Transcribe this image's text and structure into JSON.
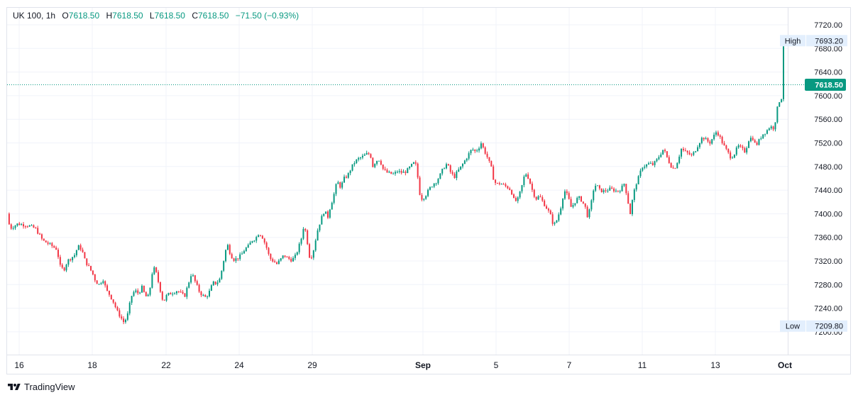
{
  "legend": {
    "symbol": "UK 100",
    "interval": "1h",
    "o_label": "O",
    "o_value": "7618.50",
    "h_label": "H",
    "h_value": "7618.50",
    "l_label": "L",
    "l_value": "7618.50",
    "c_label": "C",
    "c_value": "7618.50",
    "change": "−71.50 (−0.93%)"
  },
  "footer": {
    "brand": "TradingView"
  },
  "colors": {
    "up": "#089981",
    "down": "#f23645",
    "grid": "#f0f3fa",
    "text": "#131722",
    "last_price_bg": "#089981",
    "marker_bg": "#e3effd"
  },
  "chart_data": {
    "type": "candlestick",
    "title": "UK 100, 1h",
    "ylim": [
      7190,
      7730
    ],
    "y_ticks": [
      "7720.00",
      "7680.00",
      "7640.00",
      "7600.00",
      "7560.00",
      "7520.00",
      "7480.00",
      "7440.00",
      "7400.00",
      "7360.00",
      "7320.00",
      "7280.00",
      "7240.00",
      "7200.00"
    ],
    "x_ticks": [
      "16",
      "18",
      "22",
      "24",
      "29",
      "Sep",
      "5",
      "7",
      "11",
      "13",
      "Oct"
    ],
    "high_marker": {
      "label": "High",
      "value": "7693.20"
    },
    "low_marker": {
      "label": "Low",
      "value": "7209.80"
    },
    "last_price": "7618.50",
    "grid": true,
    "close_path": [
      [
        0,
        7400
      ],
      [
        4,
        7375
      ],
      [
        15,
        7383
      ],
      [
        30,
        7380
      ],
      [
        40,
        7375
      ],
      [
        50,
        7355
      ],
      [
        60,
        7348
      ],
      [
        70,
        7340
      ],
      [
        75,
        7310
      ],
      [
        80,
        7305
      ],
      [
        85,
        7320
      ],
      [
        95,
        7330
      ],
      [
        100,
        7345
      ],
      [
        105,
        7340
      ],
      [
        110,
        7320
      ],
      [
        115,
        7310
      ],
      [
        120,
        7300
      ],
      [
        125,
        7285
      ],
      [
        130,
        7280
      ],
      [
        135,
        7290
      ],
      [
        140,
        7270
      ],
      [
        145,
        7262
      ],
      [
        150,
        7250
      ],
      [
        155,
        7235
      ],
      [
        160,
        7225
      ],
      [
        165,
        7215
      ],
      [
        170,
        7230
      ],
      [
        175,
        7260
      ],
      [
        180,
        7270
      ],
      [
        185,
        7265
      ],
      [
        190,
        7275
      ],
      [
        195,
        7260
      ],
      [
        200,
        7260
      ],
      [
        203,
        7290
      ],
      [
        206,
        7310
      ],
      [
        210,
        7300
      ],
      [
        215,
        7275
      ],
      [
        220,
        7250
      ],
      [
        225,
        7262
      ],
      [
        230,
        7265
      ],
      [
        240,
        7270
      ],
      [
        250,
        7260
      ],
      [
        255,
        7280
      ],
      [
        260,
        7300
      ],
      [
        265,
        7285
      ],
      [
        270,
        7270
      ],
      [
        275,
        7262
      ],
      [
        280,
        7258
      ],
      [
        285,
        7268
      ],
      [
        290,
        7283
      ],
      [
        295,
        7282
      ],
      [
        300,
        7290
      ],
      [
        305,
        7320
      ],
      [
        310,
        7350
      ],
      [
        315,
        7330
      ],
      [
        320,
        7322
      ],
      [
        325,
        7325
      ],
      [
        330,
        7330
      ],
      [
        335,
        7340
      ],
      [
        340,
        7345
      ],
      [
        345,
        7355
      ],
      [
        350,
        7358
      ],
      [
        355,
        7368
      ],
      [
        360,
        7360
      ],
      [
        365,
        7345
      ],
      [
        370,
        7325
      ],
      [
        375,
        7320
      ],
      [
        380,
        7315
      ],
      [
        385,
        7322
      ],
      [
        390,
        7330
      ],
      [
        395,
        7325
      ],
      [
        400,
        7322
      ],
      [
        405,
        7325
      ],
      [
        410,
        7340
      ],
      [
        415,
        7360
      ],
      [
        418,
        7380
      ],
      [
        422,
        7365
      ],
      [
        425,
        7330
      ],
      [
        428,
        7325
      ],
      [
        432,
        7340
      ],
      [
        437,
        7370
      ],
      [
        442,
        7390
      ],
      [
        447,
        7405
      ],
      [
        452,
        7395
      ],
      [
        455,
        7410
      ],
      [
        460,
        7430
      ],
      [
        465,
        7455
      ],
      [
        470,
        7445
      ],
      [
        475,
        7460
      ],
      [
        480,
        7465
      ],
      [
        485,
        7478
      ],
      [
        490,
        7488
      ],
      [
        495,
        7493
      ],
      [
        500,
        7496
      ],
      [
        505,
        7500
      ],
      [
        508,
        7502
      ],
      [
        512,
        7500
      ],
      [
        515,
        7480
      ],
      [
        520,
        7490
      ],
      [
        525,
        7492
      ],
      [
        530,
        7475
      ],
      [
        535,
        7470
      ],
      [
        540,
        7468
      ],
      [
        545,
        7467
      ],
      [
        550,
        7472
      ],
      [
        555,
        7470
      ],
      [
        560,
        7470
      ],
      [
        565,
        7475
      ],
      [
        570,
        7482
      ],
      [
        575,
        7488
      ],
      [
        578,
        7468
      ],
      [
        582,
        7430
      ],
      [
        585,
        7425
      ],
      [
        590,
        7432
      ],
      [
        595,
        7442
      ],
      [
        600,
        7450
      ],
      [
        605,
        7455
      ],
      [
        610,
        7465
      ],
      [
        615,
        7478
      ],
      [
        620,
        7485
      ],
      [
        625,
        7470
      ],
      [
        630,
        7462
      ],
      [
        635,
        7472
      ],
      [
        640,
        7480
      ],
      [
        645,
        7490
      ],
      [
        650,
        7500
      ],
      [
        655,
        7510
      ],
      [
        660,
        7505
      ],
      [
        665,
        7513
      ],
      [
        668,
        7520
      ],
      [
        672,
        7508
      ],
      [
        677,
        7495
      ],
      [
        680,
        7485
      ],
      [
        683,
        7475
      ],
      [
        686,
        7455
      ],
      [
        690,
        7450
      ],
      [
        695,
        7452
      ],
      [
        700,
        7448
      ],
      [
        705,
        7445
      ],
      [
        710,
        7440
      ],
      [
        715,
        7420
      ],
      [
        720,
        7425
      ],
      [
        725,
        7445
      ],
      [
        730,
        7470
      ],
      [
        735,
        7460
      ],
      [
        740,
        7440
      ],
      [
        745,
        7425
      ],
      [
        750,
        7430
      ],
      [
        755,
        7420
      ],
      [
        760,
        7410
      ],
      [
        765,
        7400
      ],
      [
        770,
        7380
      ],
      [
        775,
        7390
      ],
      [
        780,
        7410
      ],
      [
        785,
        7440
      ],
      [
        790,
        7430
      ],
      [
        795,
        7410
      ],
      [
        800,
        7420
      ],
      [
        805,
        7428
      ],
      [
        810,
        7422
      ],
      [
        815,
        7410
      ],
      [
        818,
        7395
      ],
      [
        822,
        7410
      ],
      [
        826,
        7440
      ],
      [
        830,
        7450
      ],
      [
        835,
        7440
      ],
      [
        840,
        7438
      ],
      [
        845,
        7440
      ],
      [
        850,
        7442
      ],
      [
        855,
        7440
      ],
      [
        860,
        7438
      ],
      [
        865,
        7442
      ],
      [
        870,
        7452
      ],
      [
        875,
        7420
      ],
      [
        878,
        7400
      ],
      [
        882,
        7430
      ],
      [
        886,
        7450
      ],
      [
        890,
        7462
      ],
      [
        895,
        7480
      ],
      [
        900,
        7482
      ],
      [
        905,
        7485
      ],
      [
        910,
        7483
      ],
      [
        915,
        7490
      ],
      [
        920,
        7500
      ],
      [
        925,
        7510
      ],
      [
        930,
        7495
      ],
      [
        935,
        7482
      ],
      [
        940,
        7475
      ],
      [
        945,
        7490
      ],
      [
        950,
        7510
      ],
      [
        955,
        7505
      ],
      [
        960,
        7502
      ],
      [
        965,
        7498
      ],
      [
        970,
        7508
      ],
      [
        975,
        7520
      ],
      [
        980,
        7530
      ],
      [
        985,
        7525
      ],
      [
        990,
        7520
      ],
      [
        995,
        7530
      ],
      [
        1000,
        7540
      ],
      [
        1005,
        7528
      ],
      [
        1010,
        7515
      ],
      [
        1015,
        7505
      ],
      [
        1020,
        7495
      ],
      [
        1025,
        7502
      ],
      [
        1030,
        7515
      ],
      [
        1035,
        7510
      ],
      [
        1040,
        7505
      ],
      [
        1045,
        7525
      ],
      [
        1050,
        7530
      ],
      [
        1055,
        7515
      ],
      [
        1060,
        7525
      ],
      [
        1065,
        7535
      ],
      [
        1070,
        7540
      ],
      [
        1075,
        7548
      ],
      [
        1080,
        7545
      ],
      [
        1084,
        7565
      ],
      [
        1087,
        7595
      ],
      [
        1090,
        7585
      ],
      [
        1093,
        7615
      ],
      [
        1096,
        7650
      ],
      [
        1099,
        7680
      ],
      [
        1102,
        7690
      ],
      [
        1104,
        7693
      ]
    ]
  }
}
